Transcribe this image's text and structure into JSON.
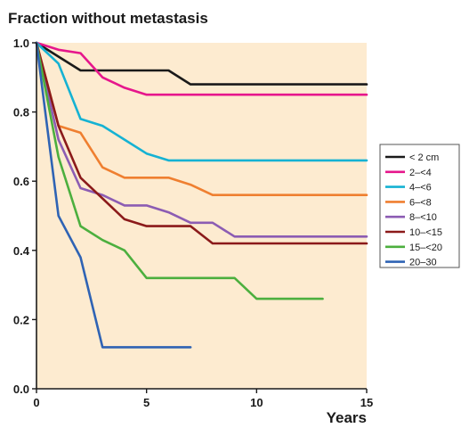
{
  "chart_data": {
    "type": "line",
    "step": true,
    "title": "Fraction without metastasis",
    "xlabel": "Years",
    "ylabel": "",
    "xlim": [
      0,
      15
    ],
    "ylim": [
      0,
      1.0
    ],
    "x_ticks": [
      0,
      5,
      10,
      15
    ],
    "x_tick_labels": [
      "0",
      "5",
      "10",
      "15"
    ],
    "y_ticks": [
      0,
      0.2,
      0.4,
      0.6,
      0.8,
      1.0
    ],
    "y_tick_labels": [
      "0.0",
      "0.2",
      "0.4",
      "0.6",
      "0.8",
      "1.0"
    ],
    "grid": false,
    "legend_position": "right",
    "plot_background": "#fdebd0",
    "series": [
      {
        "name": "< 2 cm",
        "color": "#1a1a1a",
        "x": [
          0,
          1,
          2,
          3,
          4,
          5,
          6,
          7,
          8,
          9,
          10,
          11,
          12,
          13,
          14,
          15
        ],
        "y": [
          1.0,
          0.96,
          0.92,
          0.92,
          0.92,
          0.92,
          0.92,
          0.88,
          0.88,
          0.88,
          0.88,
          0.88,
          0.88,
          0.88,
          0.88,
          0.88
        ]
      },
      {
        "name": "2–<4",
        "color": "#e6168c",
        "x": [
          0,
          1,
          2,
          3,
          4,
          5,
          6,
          7,
          8,
          9,
          10,
          11,
          12,
          13,
          14,
          15
        ],
        "y": [
          1.0,
          0.98,
          0.97,
          0.9,
          0.87,
          0.85,
          0.85,
          0.85,
          0.85,
          0.85,
          0.85,
          0.85,
          0.85,
          0.85,
          0.85,
          0.85
        ]
      },
      {
        "name": "4–<6",
        "color": "#15b2d3",
        "x": [
          0,
          1,
          2,
          3,
          4,
          5,
          6,
          7,
          8,
          9,
          10,
          11,
          12,
          13,
          14,
          15
        ],
        "y": [
          1.0,
          0.94,
          0.78,
          0.76,
          0.72,
          0.68,
          0.66,
          0.66,
          0.66,
          0.66,
          0.66,
          0.66,
          0.66,
          0.66,
          0.66,
          0.66
        ]
      },
      {
        "name": "6–<8",
        "color": "#ef7f30",
        "x": [
          0,
          1,
          2,
          3,
          4,
          5,
          6,
          7,
          8,
          9,
          10,
          11,
          12,
          13,
          14,
          15
        ],
        "y": [
          1.0,
          0.76,
          0.74,
          0.64,
          0.61,
          0.61,
          0.61,
          0.59,
          0.56,
          0.56,
          0.56,
          0.56,
          0.56,
          0.56,
          0.56,
          0.56
        ]
      },
      {
        "name": "8–<10",
        "color": "#8c5cb3",
        "x": [
          0,
          1,
          2,
          3,
          4,
          5,
          6,
          7,
          8,
          9,
          10,
          11,
          12,
          13,
          14,
          15
        ],
        "y": [
          1.0,
          0.72,
          0.58,
          0.56,
          0.53,
          0.53,
          0.51,
          0.48,
          0.48,
          0.44,
          0.44,
          0.44,
          0.44,
          0.44,
          0.44,
          0.44
        ]
      },
      {
        "name": "10–<15",
        "color": "#8b1a1a",
        "x": [
          0,
          1,
          2,
          3,
          4,
          5,
          6,
          7,
          8,
          9,
          10,
          11,
          12,
          13,
          14,
          15
        ],
        "y": [
          1.0,
          0.76,
          0.61,
          0.55,
          0.49,
          0.47,
          0.47,
          0.47,
          0.42,
          0.42,
          0.42,
          0.42,
          0.42,
          0.42,
          0.42,
          0.42
        ]
      },
      {
        "name": "15–<20",
        "color": "#4caf3e",
        "x": [
          0,
          1,
          2,
          3,
          4,
          5,
          6,
          7,
          8,
          9,
          10,
          11,
          12,
          13
        ],
        "y": [
          1.0,
          0.67,
          0.47,
          0.43,
          0.4,
          0.32,
          0.32,
          0.32,
          0.32,
          0.32,
          0.26,
          0.26,
          0.26,
          0.26
        ]
      },
      {
        "name": "20–30",
        "color": "#2f63b4",
        "x": [
          0,
          1,
          2,
          3,
          4,
          5,
          6,
          7
        ],
        "y": [
          1.0,
          0.5,
          0.38,
          0.12,
          0.12,
          0.12,
          0.12,
          0.12
        ]
      }
    ]
  }
}
